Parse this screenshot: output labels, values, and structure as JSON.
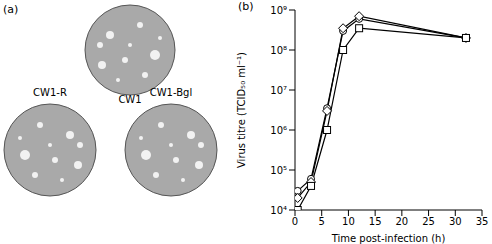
{
  "panel_a": {
    "label": "(a)",
    "plates": [
      "CW1",
      "CW1-R",
      "CW1-Bgl"
    ]
  },
  "chart_data": {
    "type": "line",
    "annotations": [
      "(b)"
    ],
    "x_label": "Time post-infection (h)",
    "y_label": "Virus titre (TCID₅₀ ml⁻¹)",
    "x": [
      0.5,
      3,
      6,
      9,
      12,
      32
    ],
    "series": [
      {
        "color": "#000000",
        "marker": "circle",
        "values": [
          30000,
          60000,
          3500000,
          300000000,
          600000000,
          200000000
        ]
      },
      {
        "color": "#000000",
        "marker": "diamond",
        "values": [
          20000,
          50000,
          3000000,
          350000000,
          700000000,
          200000000
        ]
      },
      {
        "color": "#000000",
        "marker": "square",
        "values": [
          10000,
          40000,
          1000000,
          100000000,
          350000000,
          200000000
        ]
      }
    ],
    "xlim": [
      0,
      35
    ],
    "xticks": [
      0,
      5,
      10,
      15,
      20,
      25,
      30,
      35
    ],
    "ylim": [
      10000,
      1000000000
    ],
    "yticks": [
      {
        "value": 10000,
        "label": "10⁴"
      },
      {
        "value": 100000,
        "label": "10⁵"
      },
      {
        "value": 1000000,
        "label": "10⁶"
      },
      {
        "value": 10000000,
        "label": "10⁷"
      },
      {
        "value": 100000000,
        "label": "10⁸"
      },
      {
        "value": 1000000000,
        "label": "10⁹"
      }
    ],
    "log": "y",
    "grid": false
  }
}
